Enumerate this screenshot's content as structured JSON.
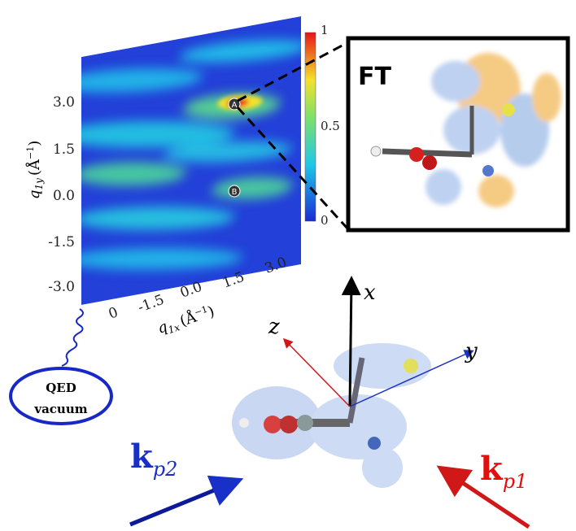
{
  "heatmap": {
    "y_ticks": [
      "3.0",
      "1.5",
      "0.0",
      "-1.5",
      "-3.0"
    ],
    "x_ticks": [
      "0",
      "-1.5",
      "0.0",
      "1.5",
      "3.0"
    ],
    "y_label": {
      "base": "q",
      "sub": "1y",
      "unit": "(Å",
      "exp": "−1",
      "close": ")"
    },
    "x_label": {
      "base": "q",
      "sub": "1x",
      "unit": "(Å",
      "exp": "−1",
      "close": ")"
    },
    "colorbar_labels": [
      "1",
      "0.5",
      "0"
    ],
    "points": [
      "A",
      "B"
    ]
  },
  "inset": {
    "title": "FT"
  },
  "vacuum": {
    "line1": "QED",
    "line2": "vacuum"
  },
  "axes": {
    "x": "x",
    "y": "y",
    "z": "z"
  },
  "beams": {
    "p2": {
      "base": "k",
      "sub": "p2"
    },
    "p1": {
      "base": "k",
      "sub": "p1"
    }
  }
}
